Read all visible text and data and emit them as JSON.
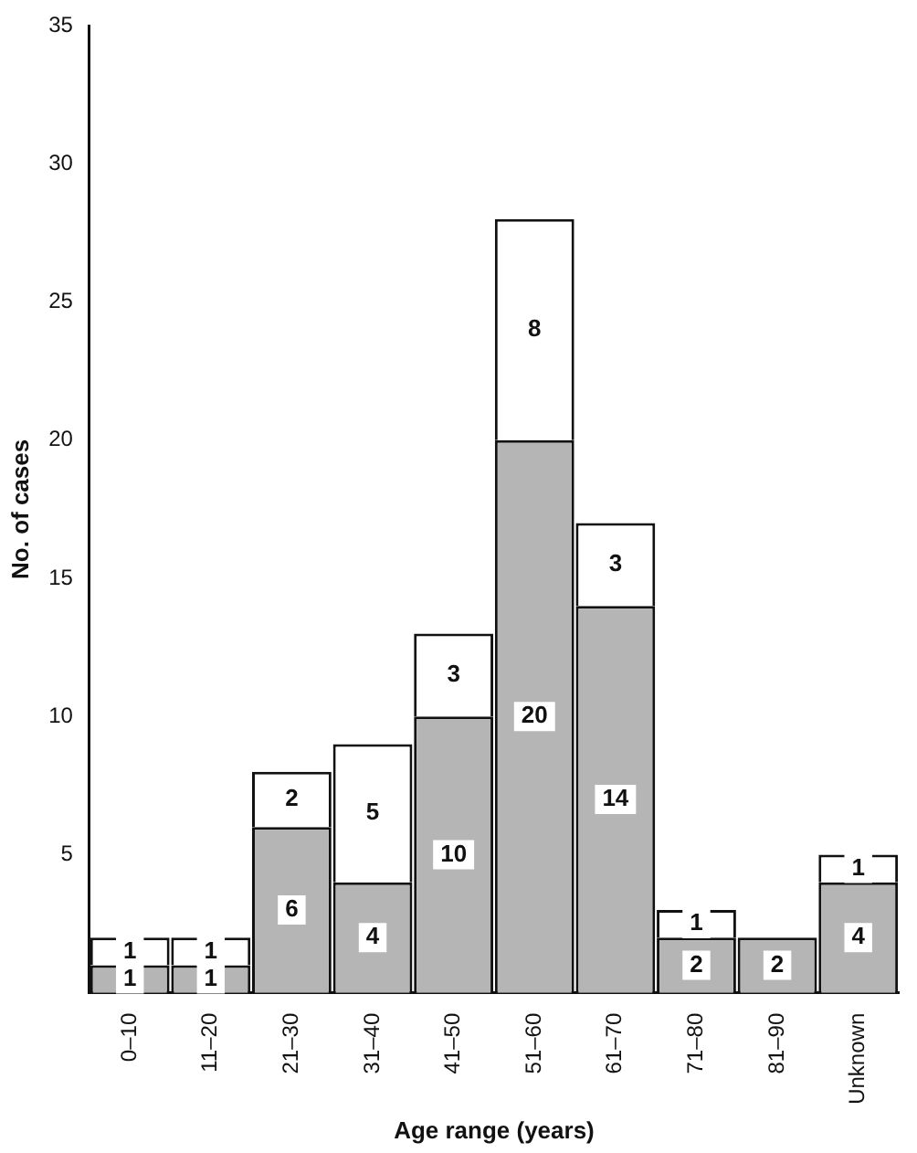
{
  "chart_data": {
    "type": "bar",
    "stacked": true,
    "xlabel": "Age range (years)",
    "ylabel": "No. of cases",
    "categories": [
      "0–10",
      "11–20",
      "21–30",
      "31–40",
      "41–50",
      "51–60",
      "61–70",
      "71–80",
      "81–90",
      "Unknown"
    ],
    "series": [
      {
        "color": "#b5b5b5",
        "values": [
          1,
          1,
          6,
          4,
          10,
          20,
          14,
          2,
          2,
          4
        ]
      },
      {
        "color": "#ffffff",
        "values": [
          1,
          1,
          2,
          5,
          3,
          8,
          3,
          1,
          null,
          1
        ]
      }
    ],
    "ylim": [
      0,
      35
    ],
    "yticks": [
      5,
      10,
      15,
      20,
      25,
      30,
      35
    ],
    "data_labels": true,
    "grid": false,
    "legend": false
  }
}
